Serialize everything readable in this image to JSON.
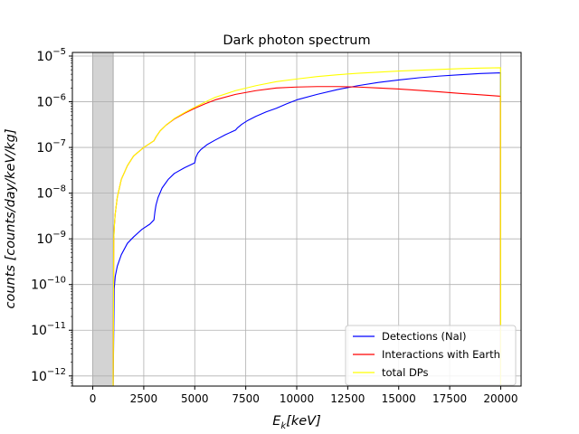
{
  "chart_data": {
    "type": "line",
    "title": "Dark photon spectrum",
    "xlabel": "E_k[keV]",
    "ylabel": "counts [counts/day/keV/kg]",
    "xscale": "linear",
    "yscale": "log",
    "xlim": [
      -1000,
      21000
    ],
    "ylim": [
      6e-13,
      1.2e-05
    ],
    "grid": true,
    "legend_position": "lower right",
    "x_ticks": [
      0,
      2500,
      5000,
      7500,
      10000,
      12500,
      15000,
      17500,
      20000
    ],
    "y_ticks": [
      {
        "exp": -12,
        "value": 1e-12
      },
      {
        "exp": -11,
        "value": 1e-11
      },
      {
        "exp": -10,
        "value": 1e-10
      },
      {
        "exp": -9,
        "value": 1e-09
      },
      {
        "exp": -8,
        "value": 1e-08
      },
      {
        "exp": -7,
        "value": 1e-07
      },
      {
        "exp": -6,
        "value": 1e-06
      },
      {
        "exp": -5,
        "value": 1e-05
      }
    ],
    "shaded_region": {
      "x0": 0,
      "x1": 1000,
      "color": "#d3d3d3"
    },
    "series": [
      {
        "name": "Detections (NaI)",
        "color": "#0000ff",
        "x": [
          1000,
          1050,
          1100,
          1200,
          1400,
          1700,
          2000,
          2400,
          2800,
          3000,
          3050,
          3100,
          3200,
          3400,
          3700,
          4000,
          4500,
          5000,
          5050,
          5150,
          5300,
          5600,
          6000,
          6500,
          7000,
          7100,
          7300,
          7600,
          8000,
          8500,
          9000,
          9500,
          10000,
          11000,
          12000,
          13000,
          14000,
          15000,
          16000,
          17000,
          18000,
          19000,
          19990,
          20000
        ],
        "y": [
          6e-13,
          8e-11,
          1.5e-10,
          2.5e-10,
          4.5e-10,
          8e-10,
          1.1e-09,
          1.6e-09,
          2.1e-09,
          2.6e-09,
          4e-09,
          5.5e-09,
          8e-09,
          1.3e-08,
          2e-08,
          2.7e-08,
          3.6e-08,
          4.6e-08,
          6e-08,
          7.5e-08,
          9e-08,
          1.15e-07,
          1.45e-07,
          1.9e-07,
          2.4e-07,
          2.7e-07,
          3.2e-07,
          3.9e-07,
          4.8e-07,
          6e-07,
          7.2e-07,
          9e-07,
          1.1e-06,
          1.45e-06,
          1.85e-06,
          2.25e-06,
          2.65e-06,
          3e-06,
          3.35e-06,
          3.65e-06,
          3.9e-06,
          4.15e-06,
          4.3e-06,
          6e-13
        ]
      },
      {
        "name": "Interactions with Earth",
        "color": "#ff0000",
        "x": [
          1000,
          1030,
          1060,
          1100,
          1200,
          1400,
          1700,
          2000,
          2500,
          3000,
          3100,
          3300,
          3600,
          4000,
          4500,
          5000,
          5500,
          6000,
          7000,
          8000,
          9000,
          10000,
          11000,
          12000,
          13000,
          14000,
          15000,
          16000,
          17000,
          18000,
          19000,
          19990,
          20000
        ],
        "y": [
          6e-13,
          1e-09,
          2e-09,
          3.5e-09,
          8e-09,
          2e-08,
          4e-08,
          6.5e-08,
          1e-07,
          1.4e-07,
          1.7e-07,
          2.3e-07,
          3.1e-07,
          4.2e-07,
          5.6e-07,
          7.2e-07,
          9e-07,
          1.1e-06,
          1.45e-06,
          1.75e-06,
          2e-06,
          2.1e-06,
          2.15e-06,
          2.15e-06,
          2.1e-06,
          2e-06,
          1.9e-06,
          1.78e-06,
          1.65e-06,
          1.52e-06,
          1.42e-06,
          1.32e-06,
          6e-13
        ]
      },
      {
        "name": "total DPs",
        "color": "#ffff00",
        "x": [
          1000,
          1030,
          1060,
          1100,
          1200,
          1400,
          1700,
          2000,
          2500,
          3000,
          3100,
          3300,
          3600,
          4000,
          4500,
          5000,
          5500,
          6000,
          7000,
          8000,
          9000,
          10000,
          11000,
          12000,
          13000,
          14000,
          15000,
          16000,
          17000,
          18000,
          19000,
          19990,
          20000
        ],
        "y": [
          6e-13,
          1e-09,
          2e-09,
          3.5e-09,
          8e-09,
          2e-08,
          4e-08,
          6.5e-08,
          1e-07,
          1.4e-07,
          1.7e-07,
          2.3e-07,
          3.1e-07,
          4.3e-07,
          5.8e-07,
          7.6e-07,
          9.8e-07,
          1.25e-06,
          1.75e-06,
          2.25e-06,
          2.75e-06,
          3.15e-06,
          3.55e-06,
          3.9e-06,
          4.2e-06,
          4.45e-06,
          4.7e-06,
          4.9e-06,
          5.1e-06,
          5.3e-06,
          5.45e-06,
          5.55e-06,
          6e-13
        ]
      }
    ]
  }
}
